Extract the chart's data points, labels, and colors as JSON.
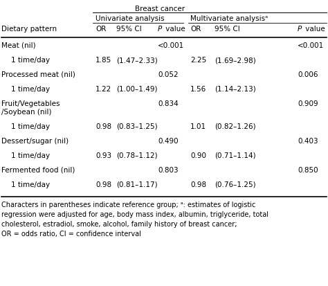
{
  "title": "Breast cancer",
  "group_headers": [
    "Univariate analysis",
    "Multivariate analysisᵃ"
  ],
  "col_labels": [
    "OR",
    "95% CI",
    "P value",
    "OR",
    "95% CI",
    "P value"
  ],
  "rows": [
    {
      "label": "Meat (nil)",
      "indent": false,
      "uni_or": "",
      "uni_ci": "",
      "uni_p": "<0.001",
      "mul_or": "",
      "mul_ci": "",
      "mul_p": "<0.001",
      "two_line": false
    },
    {
      "label": "1 time/day",
      "indent": true,
      "uni_or": "1.85",
      "uni_ci": "(1.47–2.33)",
      "uni_p": "",
      "mul_or": "2.25",
      "mul_ci": "(1.69–2.98)",
      "mul_p": "",
      "two_line": false
    },
    {
      "label": "Processed meat (nil)",
      "indent": false,
      "uni_or": "",
      "uni_ci": "",
      "uni_p": "0.052",
      "mul_or": "",
      "mul_ci": "",
      "mul_p": "0.006",
      "two_line": false
    },
    {
      "label": "1 time/day",
      "indent": true,
      "uni_or": "1.22",
      "uni_ci": "(1.00–1.49)",
      "uni_p": "",
      "mul_or": "1.56",
      "mul_ci": "(1.14–2.13)",
      "mul_p": "",
      "two_line": false
    },
    {
      "label": "Fruit/Vegetables",
      "indent": false,
      "uni_or": "",
      "uni_ci": "",
      "uni_p": "0.834",
      "mul_or": "",
      "mul_ci": "",
      "mul_p": "0.909",
      "two_line": true,
      "label2": "/Soybean (nil)"
    },
    {
      "label": "1 time/day",
      "indent": true,
      "uni_or": "0.98",
      "uni_ci": "(0.83–1.25)",
      "uni_p": "",
      "mul_or": "1.01",
      "mul_ci": "(0.82–1.26)",
      "mul_p": "",
      "two_line": false
    },
    {
      "label": "Dessert/sugar (nil)",
      "indent": false,
      "uni_or": "",
      "uni_ci": "",
      "uni_p": "0.490",
      "mul_or": "",
      "mul_ci": "",
      "mul_p": "0.403",
      "two_line": false
    },
    {
      "label": "1 time/day",
      "indent": true,
      "uni_or": "0.93",
      "uni_ci": "(0.78–1.12)",
      "uni_p": "",
      "mul_or": "0.90",
      "mul_ci": "(0.71–1.14)",
      "mul_p": "",
      "two_line": false
    },
    {
      "label": "Fermented food (nil)",
      "indent": false,
      "uni_or": "",
      "uni_ci": "",
      "uni_p": "0.803",
      "mul_or": "",
      "mul_ci": "",
      "mul_p": "0.850",
      "two_line": false
    },
    {
      "label": "1 time/day",
      "indent": true,
      "uni_or": "0.98",
      "uni_ci": "(0.81–1.17)",
      "uni_p": "",
      "mul_or": "0.98",
      "mul_ci": "(0.76–1.25)",
      "mul_p": "",
      "two_line": false
    }
  ],
  "footnote_lines": [
    "Characters in parentheses indicate reference group; ᵃ: estimates of logistic",
    "regression were adjusted for age, body mass index, albumin, triglyceride, total",
    "cholesterol, estradiol, smoke, alcohol, family history of breast cancer;",
    "OR = odds ratio, CI = confidence interval"
  ],
  "bg_color": "#ffffff",
  "text_color": "#000000",
  "line_color": "#000000",
  "font_size": 7.5,
  "footnote_font_size": 7.0
}
